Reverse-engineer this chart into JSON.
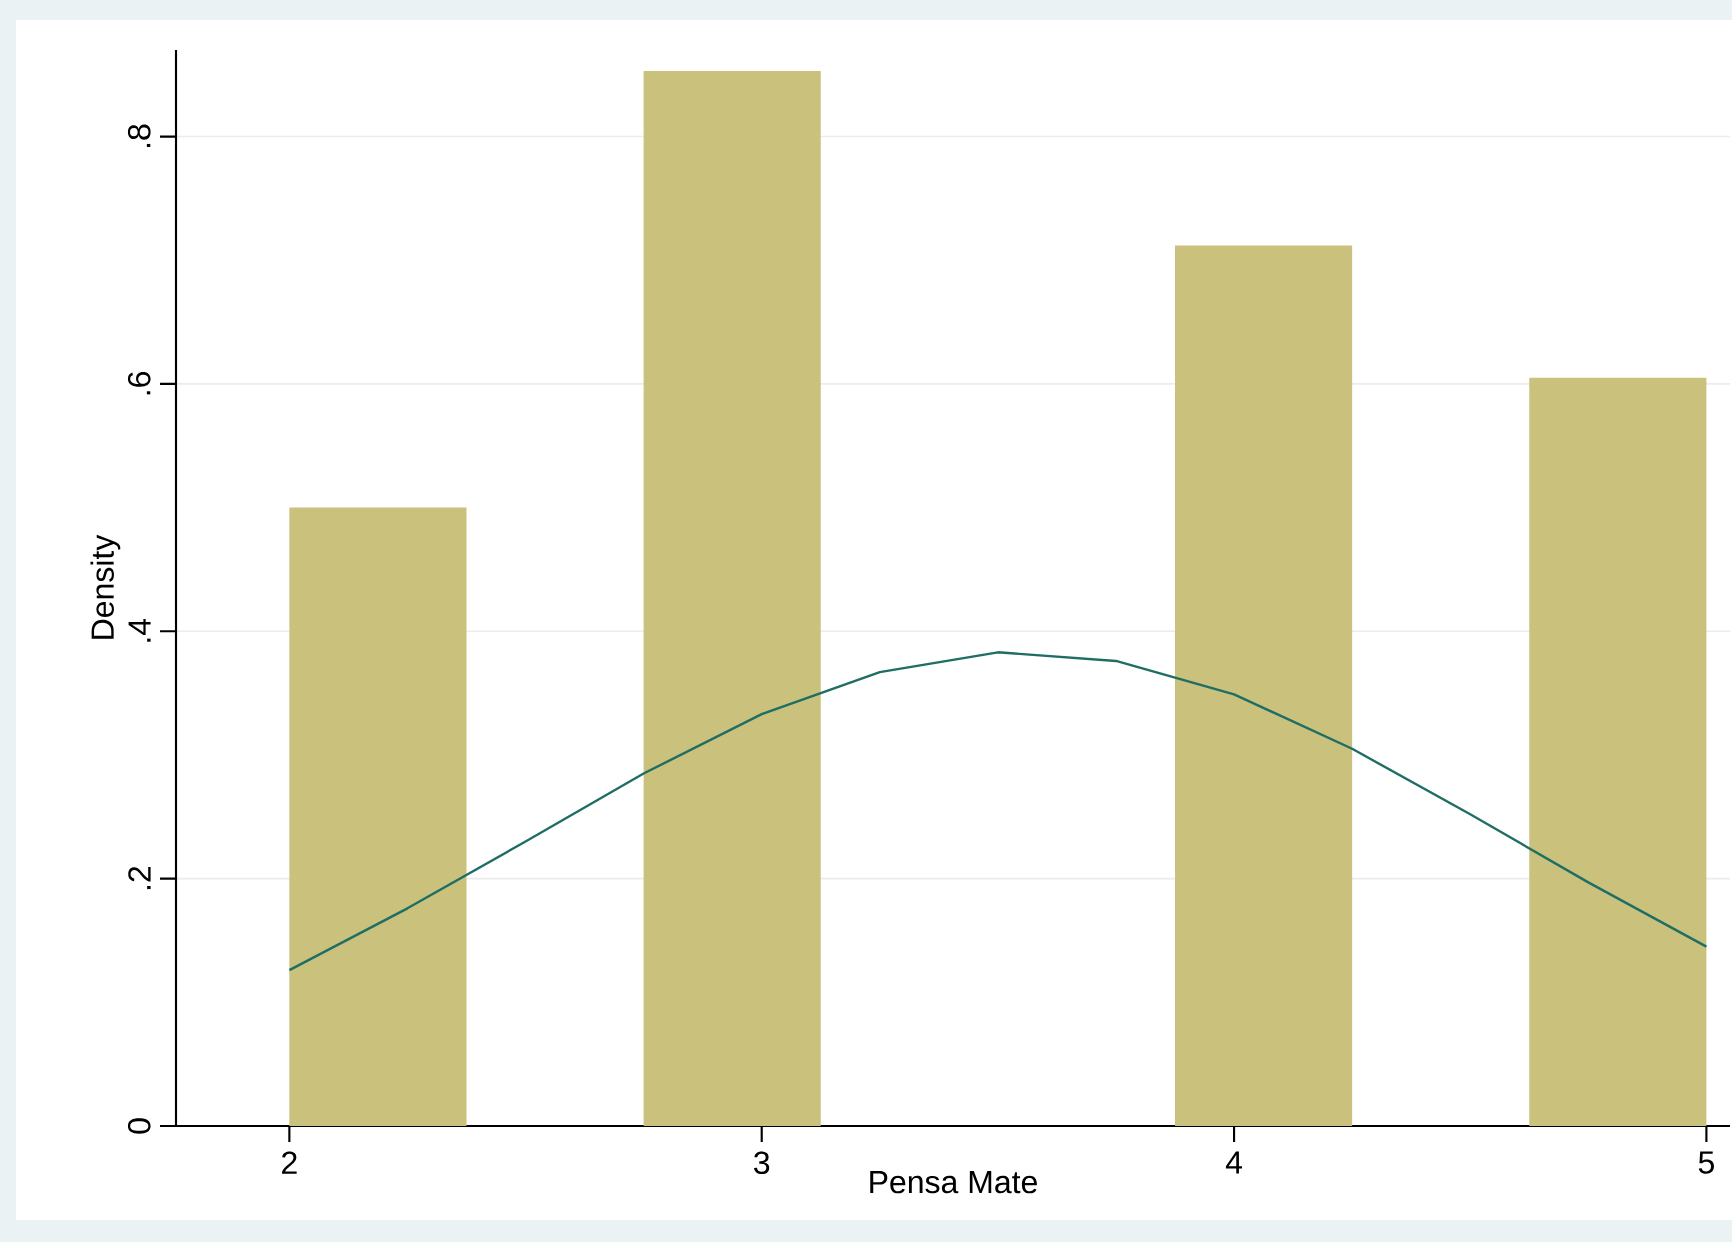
{
  "chart_data": {
    "type": "histogram",
    "xlabel": "Pensa Mate",
    "ylabel": "Density",
    "bins": [
      2,
      2.375,
      2.75,
      3.125,
      3.5,
      3.875,
      4.25,
      4.625,
      5
    ],
    "values": [
      0.5,
      0,
      0.853,
      0,
      0,
      0.712,
      0,
      0.605
    ],
    "color": "#c9c17c",
    "series": [
      {
        "type": "line",
        "color": "#1f6e64",
        "x": [
          2,
          2.25,
          2.5,
          2.75,
          3,
          3.25,
          3.5,
          3.75,
          4,
          4.25,
          4.5,
          4.75,
          5
        ],
        "values": [
          0.126,
          0.176,
          0.23,
          0.285,
          0.333,
          0.367,
          0.383,
          0.376,
          0.349,
          0.305,
          0.252,
          0.197,
          0.145
        ]
      }
    ],
    "xlim": [
      1.76,
      5.05
    ],
    "ylim": [
      0,
      0.87
    ],
    "xticks": [
      2,
      3,
      4,
      5
    ],
    "yticks": [
      {
        "value": 0,
        "label": "0"
      },
      {
        "value": 0.2,
        "label": ".2"
      },
      {
        "value": 0.4,
        "label": ".4"
      },
      {
        "value": 0.6,
        "label": ".6"
      },
      {
        "value": 0.8,
        "label": ".8"
      }
    ],
    "grid": "y"
  }
}
